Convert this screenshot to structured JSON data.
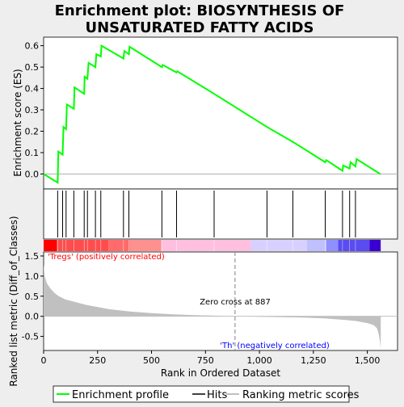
{
  "chart_data": {
    "type": "line",
    "title_lines": [
      "Enrichment plot: BIOSYNTHESIS OF",
      "UNSATURATED FATTY ACIDS"
    ],
    "top_panel": {
      "ylabel": "Enrichment score (ES)",
      "ylim": [
        -0.07,
        0.64
      ],
      "yticks": [
        "0.0",
        "0.1",
        "0.2",
        "0.3",
        "0.4",
        "0.5",
        "0.6"
      ],
      "ytick_values": [
        0.0,
        0.1,
        0.2,
        0.3,
        0.4,
        0.5,
        0.6
      ],
      "line_color": "#00ff00",
      "enrichment_profile": {
        "x": [
          0,
          65,
          68,
          88,
          92,
          104,
          108,
          140,
          143,
          188,
          190,
          203,
          208,
          240,
          244,
          265,
          268,
          370,
          374,
          395,
          398,
          548,
          552,
          616,
          620,
          790,
          1035,
          1155,
          1305,
          1310,
          1385,
          1388,
          1418,
          1422,
          1445,
          1450,
          1560
        ],
        "y": [
          0.0,
          -0.04,
          0.105,
          0.09,
          0.22,
          0.21,
          0.325,
          0.305,
          0.405,
          0.375,
          0.455,
          0.445,
          0.52,
          0.5,
          0.56,
          0.55,
          0.6,
          0.54,
          0.575,
          0.56,
          0.595,
          0.5,
          0.51,
          0.475,
          0.48,
          0.375,
          0.22,
          0.15,
          0.055,
          0.065,
          0.015,
          0.04,
          0.025,
          0.055,
          0.035,
          0.07,
          0.0
        ]
      }
    },
    "hits": [
      65,
      88,
      104,
      140,
      188,
      203,
      240,
      265,
      370,
      395,
      548,
      616,
      790,
      1035,
      1155,
      1305,
      1385,
      1418,
      1445
    ],
    "bottom_panel": {
      "ylabel": "Ranked list metric (Diff_of_Classes)",
      "ylim": [
        -0.85,
        1.6
      ],
      "yticks": [
        "-0.5",
        "0.0",
        "0.5",
        "1.0",
        "1.5"
      ],
      "ytick_values": [
        -0.5,
        0.0,
        0.5,
        1.0,
        1.5
      ],
      "fill_color": "#c0c0c0",
      "metric_profile": {
        "x": [
          0,
          5,
          15,
          30,
          50,
          70,
          100,
          150,
          200,
          300,
          400,
          500,
          600,
          700,
          800,
          887,
          1000,
          1100,
          1200,
          1300,
          1400,
          1450,
          1500,
          1530,
          1545,
          1552,
          1558,
          1562
        ],
        "y": [
          1.3,
          1.0,
          0.82,
          0.7,
          0.58,
          0.5,
          0.42,
          0.35,
          0.28,
          0.18,
          0.12,
          0.08,
          0.05,
          0.03,
          0.015,
          0.0,
          -0.01,
          -0.02,
          -0.03,
          -0.05,
          -0.09,
          -0.12,
          -0.17,
          -0.22,
          -0.3,
          -0.42,
          -0.6,
          -0.8
        ]
      },
      "zero_cross_text": "Zero cross at 887",
      "zero_cross_x": 887,
      "positive_label": "'Tregs' (positively correlated)",
      "negative_label": "'Th' (negatively correlated)",
      "positive_label_color": "#ff0000",
      "negative_label_color": "#0000ff"
    },
    "color_bar": [
      {
        "from": 0,
        "to": 60,
        "color": "#ff0000"
      },
      {
        "from": 60,
        "to": 300,
        "color": "#ff4d4d"
      },
      {
        "from": 300,
        "to": 400,
        "color": "#ff6b6b"
      },
      {
        "from": 400,
        "to": 545,
        "color": "#ff9090"
      },
      {
        "from": 545,
        "to": 960,
        "color": "#ffc0e0"
      },
      {
        "from": 960,
        "to": 1220,
        "color": "#d8d0ff"
      },
      {
        "from": 1220,
        "to": 1310,
        "color": "#c0c0ff"
      },
      {
        "from": 1310,
        "to": 1365,
        "color": "#8f8fff"
      },
      {
        "from": 1365,
        "to": 1510,
        "color": "#5a4cf0"
      },
      {
        "from": 1510,
        "to": 1562,
        "color": "#3a00d0"
      }
    ],
    "xlabel": "Rank in Ordered Dataset",
    "xlim": [
      0,
      1640
    ],
    "xticks": [
      "0",
      "250",
      "500",
      "750",
      "1,000",
      "1,250",
      "1,500"
    ],
    "xtick_values": [
      0,
      250,
      500,
      750,
      1000,
      1250,
      1500
    ],
    "legend": [
      "Enrichment profile",
      "Hits",
      "Ranking metric scores"
    ],
    "legend_placement": "bottom"
  }
}
